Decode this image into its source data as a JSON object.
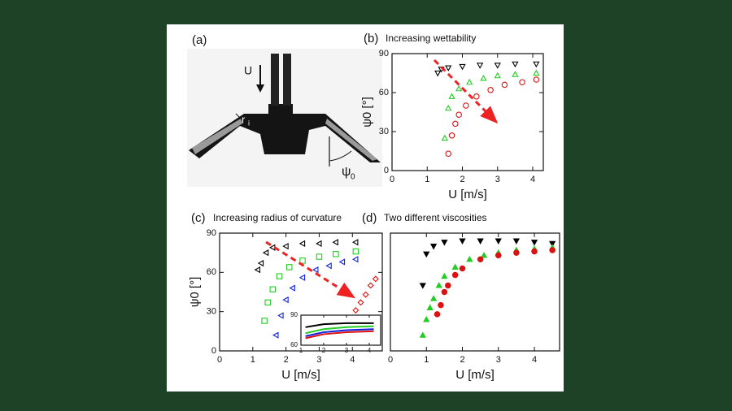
{
  "panel_a": {
    "label": "(a)",
    "velocity": "U",
    "radius": "r",
    "radius_sub": "i",
    "angle": "ψ",
    "angle_sub": "0"
  },
  "chart_data": [
    {
      "type": "scatter",
      "label": "(b)",
      "title": "Increasing wettability",
      "xlabel": "U [m/s]",
      "ylabel": "ψ0 [°]",
      "xlim": [
        0,
        4.3
      ],
      "ylim": [
        0,
        90
      ],
      "xticks": [
        0,
        1,
        2,
        3,
        4
      ],
      "yticks": [
        0,
        30,
        60,
        90
      ],
      "series": [
        {
          "color": "#000000",
          "marker": "down",
          "filled": false,
          "x": [
            1.3,
            1.4,
            1.6,
            2.0,
            2.5,
            3.0,
            3.5,
            4.1
          ],
          "y": [
            75,
            78,
            79,
            80,
            81,
            81,
            82,
            82
          ]
        },
        {
          "color": "#22cc22",
          "marker": "up",
          "filled": false,
          "x": [
            1.5,
            1.6,
            1.7,
            1.9,
            2.2,
            2.6,
            3.0,
            3.5,
            4.1
          ],
          "y": [
            25,
            48,
            57,
            63,
            68,
            71,
            73,
            74,
            75
          ]
        },
        {
          "color": "#dd1111",
          "marker": "circle",
          "filled": false,
          "x": [
            1.6,
            1.7,
            1.8,
            1.9,
            2.1,
            2.4,
            2.8,
            3.2,
            3.7,
            4.1
          ],
          "y": [
            13,
            27,
            36,
            43,
            50,
            57,
            62,
            66,
            68,
            70
          ]
        }
      ]
    },
    {
      "type": "scatter",
      "label": "(c)",
      "title": "Increasing radius of curvature",
      "xlabel": "U [m/s]",
      "ylabel": "ψ0 [°]",
      "xlim": [
        0,
        4.9
      ],
      "ylim": [
        0,
        90
      ],
      "xticks": [
        0,
        1,
        2,
        3,
        4
      ],
      "yticks": [
        0,
        30,
        60,
        90
      ],
      "series": [
        {
          "color": "#000000",
          "marker": "left",
          "filled": false,
          "x": [
            1.15,
            1.25,
            1.4,
            1.6,
            2.0,
            2.5,
            3.0,
            3.5,
            4.1
          ],
          "y": [
            62,
            67,
            75,
            79,
            80,
            82,
            82,
            83,
            83
          ]
        },
        {
          "color": "#22cc22",
          "marker": "square",
          "filled": false,
          "x": [
            1.35,
            1.45,
            1.6,
            1.8,
            2.1,
            2.5,
            3.0,
            3.5,
            4.1
          ],
          "y": [
            23,
            37,
            47,
            57,
            64,
            69,
            72,
            74,
            76
          ]
        },
        {
          "color": "#1122dd",
          "marker": "left",
          "filled": false,
          "x": [
            1.7,
            1.85,
            2.0,
            2.2,
            2.5,
            2.9,
            3.3,
            3.7,
            4.1
          ],
          "y": [
            12,
            27,
            39,
            48,
            56,
            62,
            65,
            68,
            70
          ]
        },
        {
          "color": "#dd1111",
          "marker": "diamond",
          "filled": false,
          "x": [
            4.1,
            4.25,
            4.4,
            4.55,
            4.7
          ],
          "y": [
            31,
            37,
            43,
            50,
            55
          ]
        }
      ]
    },
    {
      "type": "scatter",
      "xlim": [
        1,
        4.5
      ],
      "ylim": [
        60,
        90
      ],
      "xticks": [
        1,
        2,
        3,
        4
      ],
      "yticks": [
        60,
        90
      ],
      "series": [
        {
          "color": "#000000",
          "marker": "line",
          "x": [
            1.2,
            2.0,
            3.0,
            4.2
          ],
          "y": [
            78,
            81,
            82,
            82
          ]
        },
        {
          "color": "#22cc22",
          "marker": "line",
          "x": [
            1.2,
            2.0,
            3.0,
            4.2
          ],
          "y": [
            72,
            76,
            78,
            79
          ]
        },
        {
          "color": "#1122dd",
          "marker": "line",
          "x": [
            1.2,
            2.0,
            3.0,
            4.2
          ],
          "y": [
            69,
            73,
            75,
            76
          ]
        },
        {
          "color": "#dd1111",
          "marker": "line",
          "x": [
            1.2,
            2.0,
            3.0,
            4.2
          ],
          "y": [
            67,
            71,
            73,
            74
          ]
        }
      ]
    },
    {
      "type": "scatter",
      "label": "(d)",
      "title": "Two different viscosities",
      "xlabel": "U [m/s]",
      "xlim": [
        0,
        4.7
      ],
      "ylim": [
        0,
        90
      ],
      "xticks": [
        0,
        1,
        2,
        3,
        4
      ],
      "series": [
        {
          "color": "#000000",
          "marker": "down",
          "filled": true,
          "x": [
            0.9,
            1.0,
            1.2,
            1.5,
            2.0,
            2.5,
            3.0,
            3.5,
            4.0,
            4.5
          ],
          "y": [
            50,
            74,
            80,
            83,
            84,
            84,
            84,
            84,
            83,
            82
          ]
        },
        {
          "color": "#22cc22",
          "marker": "up",
          "filled": true,
          "x": [
            0.9,
            1.0,
            1.1,
            1.2,
            1.35,
            1.5,
            1.8,
            2.2,
            2.6,
            3.0,
            3.5,
            4.0,
            4.5
          ],
          "y": [
            12,
            24,
            33,
            40,
            50,
            57,
            64,
            70,
            73,
            75,
            77,
            78,
            79
          ]
        },
        {
          "color": "#dd1111",
          "marker": "circle",
          "filled": true,
          "x": [
            1.3,
            1.4,
            1.5,
            1.6,
            1.8,
            2.0,
            2.5,
            3.0,
            3.5,
            4.0,
            4.5
          ],
          "y": [
            28,
            35,
            45,
            50,
            58,
            63,
            70,
            73,
            75,
            76,
            77
          ]
        }
      ]
    }
  ]
}
